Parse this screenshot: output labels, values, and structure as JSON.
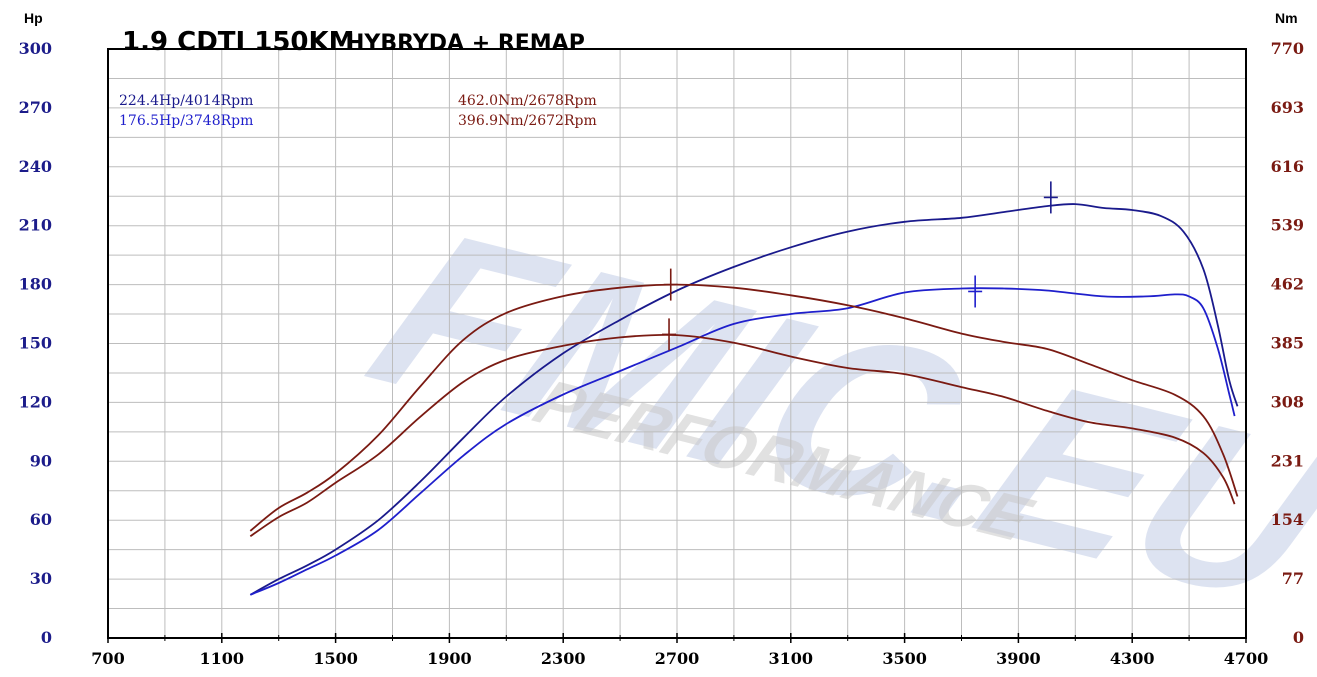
{
  "chart_data": {
    "type": "line",
    "title": "1.9 CDTI 150KM",
    "subtitle": "HYBRYDA + REMAP",
    "xlim": [
      700,
      4700
    ],
    "x_ticks": [
      "700",
      "1100",
      "1500",
      "1900",
      "2300",
      "2700",
      "3100",
      "3500",
      "3900",
      "4300",
      "4700"
    ],
    "left_axis": {
      "unit": "Hp",
      "ylim": [
        0,
        300
      ],
      "ticks": [
        "0",
        "30",
        "60",
        "90",
        "120",
        "150",
        "180",
        "210",
        "240",
        "270",
        "300"
      ]
    },
    "right_axis": {
      "unit": "Nm",
      "ylim": [
        0,
        770
      ],
      "ticks": [
        "0",
        "77",
        "154",
        "231",
        "308",
        "385",
        "462",
        "539",
        "616",
        "693",
        "770"
      ]
    },
    "grid": true,
    "annotations": {
      "hp_tuned": "224.4Hp/4014Rpm",
      "hp_stock": "176.5Hp/3748Rpm",
      "nm_tuned": "462.0Nm/2678Rpm",
      "nm_stock": "396.9Nm/2672Rpm"
    },
    "colors": {
      "hp_tuned": "#1a1a8c",
      "hp_stock": "#1f1fcc",
      "nm_tuned": "#7a1a12",
      "nm_stock": "#7a1a12",
      "left_ticks": "#1c1c8a",
      "right_ticks": "#7a1a12",
      "grid": "#bdbdbd"
    },
    "watermark": {
      "brand": "FMIC.EU",
      "tagline": "PERFORMANCE"
    },
    "series": [
      {
        "key": "hp_tuned",
        "axis": "left",
        "peak": [
          4014,
          224.4
        ],
        "points": [
          [
            1200,
            22
          ],
          [
            1300,
            30
          ],
          [
            1400,
            37
          ],
          [
            1500,
            45
          ],
          [
            1650,
            60
          ],
          [
            1800,
            80
          ],
          [
            1950,
            102
          ],
          [
            2100,
            123
          ],
          [
            2300,
            145
          ],
          [
            2500,
            162
          ],
          [
            2700,
            177
          ],
          [
            2900,
            189
          ],
          [
            3100,
            199
          ],
          [
            3300,
            207
          ],
          [
            3500,
            212
          ],
          [
            3700,
            214
          ],
          [
            3850,
            217
          ],
          [
            4000,
            220
          ],
          [
            4100,
            221
          ],
          [
            4200,
            219
          ],
          [
            4300,
            218
          ],
          [
            4400,
            215
          ],
          [
            4480,
            207
          ],
          [
            4550,
            188
          ],
          [
            4600,
            160
          ],
          [
            4640,
            132
          ],
          [
            4670,
            118
          ]
        ]
      },
      {
        "key": "hp_stock",
        "axis": "left",
        "peak": [
          3748,
          176.5
        ],
        "points": [
          [
            1200,
            22
          ],
          [
            1300,
            28
          ],
          [
            1400,
            35
          ],
          [
            1500,
            42
          ],
          [
            1650,
            55
          ],
          [
            1800,
            74
          ],
          [
            1950,
            93
          ],
          [
            2100,
            109
          ],
          [
            2300,
            124
          ],
          [
            2500,
            136
          ],
          [
            2700,
            148
          ],
          [
            2900,
            160
          ],
          [
            3100,
            165
          ],
          [
            3300,
            168
          ],
          [
            3500,
            176
          ],
          [
            3700,
            178
          ],
          [
            3850,
            178
          ],
          [
            4000,
            177
          ],
          [
            4200,
            174
          ],
          [
            4350,
            174
          ],
          [
            4450,
            175
          ],
          [
            4500,
            174
          ],
          [
            4550,
            168
          ],
          [
            4600,
            148
          ],
          [
            4640,
            125
          ],
          [
            4660,
            113
          ]
        ]
      },
      {
        "key": "nm_tuned",
        "axis": "right",
        "peak": [
          2678,
          462.0
        ],
        "points": [
          [
            1200,
            140
          ],
          [
            1300,
            170
          ],
          [
            1400,
            190
          ],
          [
            1500,
            215
          ],
          [
            1650,
            265
          ],
          [
            1800,
            330
          ],
          [
            1950,
            390
          ],
          [
            2100,
            425
          ],
          [
            2300,
            447
          ],
          [
            2500,
            458
          ],
          [
            2700,
            462
          ],
          [
            2900,
            458
          ],
          [
            3100,
            448
          ],
          [
            3300,
            435
          ],
          [
            3500,
            418
          ],
          [
            3700,
            398
          ],
          [
            3850,
            387
          ],
          [
            4000,
            378
          ],
          [
            4150,
            358
          ],
          [
            4300,
            337
          ],
          [
            4450,
            318
          ],
          [
            4550,
            290
          ],
          [
            4620,
            240
          ],
          [
            4670,
            185
          ]
        ]
      },
      {
        "key": "nm_stock",
        "axis": "right",
        "peak": [
          2672,
          396.9
        ],
        "points": [
          [
            1200,
            133
          ],
          [
            1300,
            158
          ],
          [
            1400,
            177
          ],
          [
            1500,
            203
          ],
          [
            1650,
            240
          ],
          [
            1800,
            290
          ],
          [
            1950,
            335
          ],
          [
            2100,
            364
          ],
          [
            2300,
            382
          ],
          [
            2500,
            393
          ],
          [
            2700,
            396
          ],
          [
            2900,
            386
          ],
          [
            3100,
            368
          ],
          [
            3300,
            353
          ],
          [
            3500,
            345
          ],
          [
            3700,
            328
          ],
          [
            3850,
            315
          ],
          [
            4000,
            297
          ],
          [
            4150,
            282
          ],
          [
            4300,
            274
          ],
          [
            4450,
            262
          ],
          [
            4550,
            242
          ],
          [
            4620,
            210
          ],
          [
            4660,
            175
          ]
        ]
      }
    ]
  }
}
